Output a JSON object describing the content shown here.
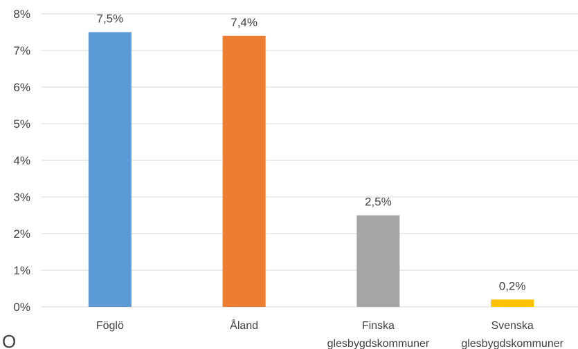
{
  "chart_data": {
    "type": "bar",
    "categories": [
      [
        "Föglö"
      ],
      [
        "Åland"
      ],
      [
        "Finska",
        "glesbygdskommuner"
      ],
      [
        "Svenska",
        "glesbygdskommuner"
      ]
    ],
    "values": [
      7.5,
      7.4,
      2.5,
      0.2
    ],
    "data_labels": [
      "7,5%",
      "7,4%",
      "2,5%",
      "0,2%"
    ],
    "bar_colors": [
      "#5b9bd5",
      "#ed7d31",
      "#a5a5a5",
      "#ffc000"
    ],
    "ylim": [
      0,
      8
    ],
    "y_ticks": [
      0,
      1,
      2,
      3,
      4,
      5,
      6,
      7,
      8
    ],
    "y_tick_labels": [
      "0%",
      "1%",
      "2%",
      "3%",
      "4%",
      "5%",
      "6%",
      "7%",
      "8%"
    ],
    "gridlines": true,
    "gridline_color": "#d9d9d9",
    "title": "",
    "xlabel": "",
    "ylabel": ""
  },
  "fragment": {
    "text": "O"
  }
}
